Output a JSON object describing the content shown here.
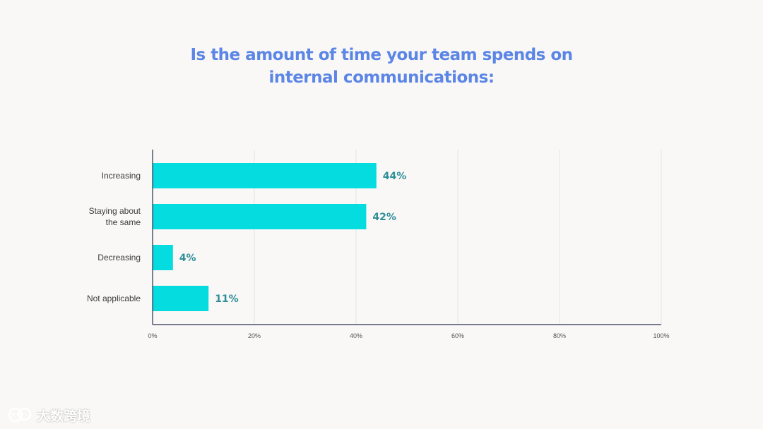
{
  "title_lines": [
    "Is the amount of time your team spends on",
    "internal communications:"
  ],
  "colors": {
    "bar": "#05dce0",
    "title": "#5b85e6",
    "label": "#2f8f99",
    "axis": "#2b2f52",
    "grid": "#e4e4e8"
  },
  "chart_data": {
    "type": "bar",
    "orientation": "horizontal",
    "title": "Is the amount of time your team spends on internal communications:",
    "categories": [
      [
        "Increasing"
      ],
      [
        "Staying about",
        "the same"
      ],
      [
        "Decreasing"
      ],
      [
        "Not applicable"
      ]
    ],
    "values": [
      44,
      42,
      4,
      11
    ],
    "value_labels": [
      "44%",
      "42%",
      "4%",
      "11%"
    ],
    "xlim": [
      0,
      100
    ],
    "ticks": [
      0,
      20,
      40,
      60,
      80,
      100
    ],
    "tick_labels": [
      "0%",
      "20%",
      "40%",
      "60%",
      "80%",
      "100%"
    ],
    "grid": true,
    "legend": "none"
  },
  "watermark": {
    "text": "大数跨境",
    "icon": "wechat-logo-icon"
  }
}
